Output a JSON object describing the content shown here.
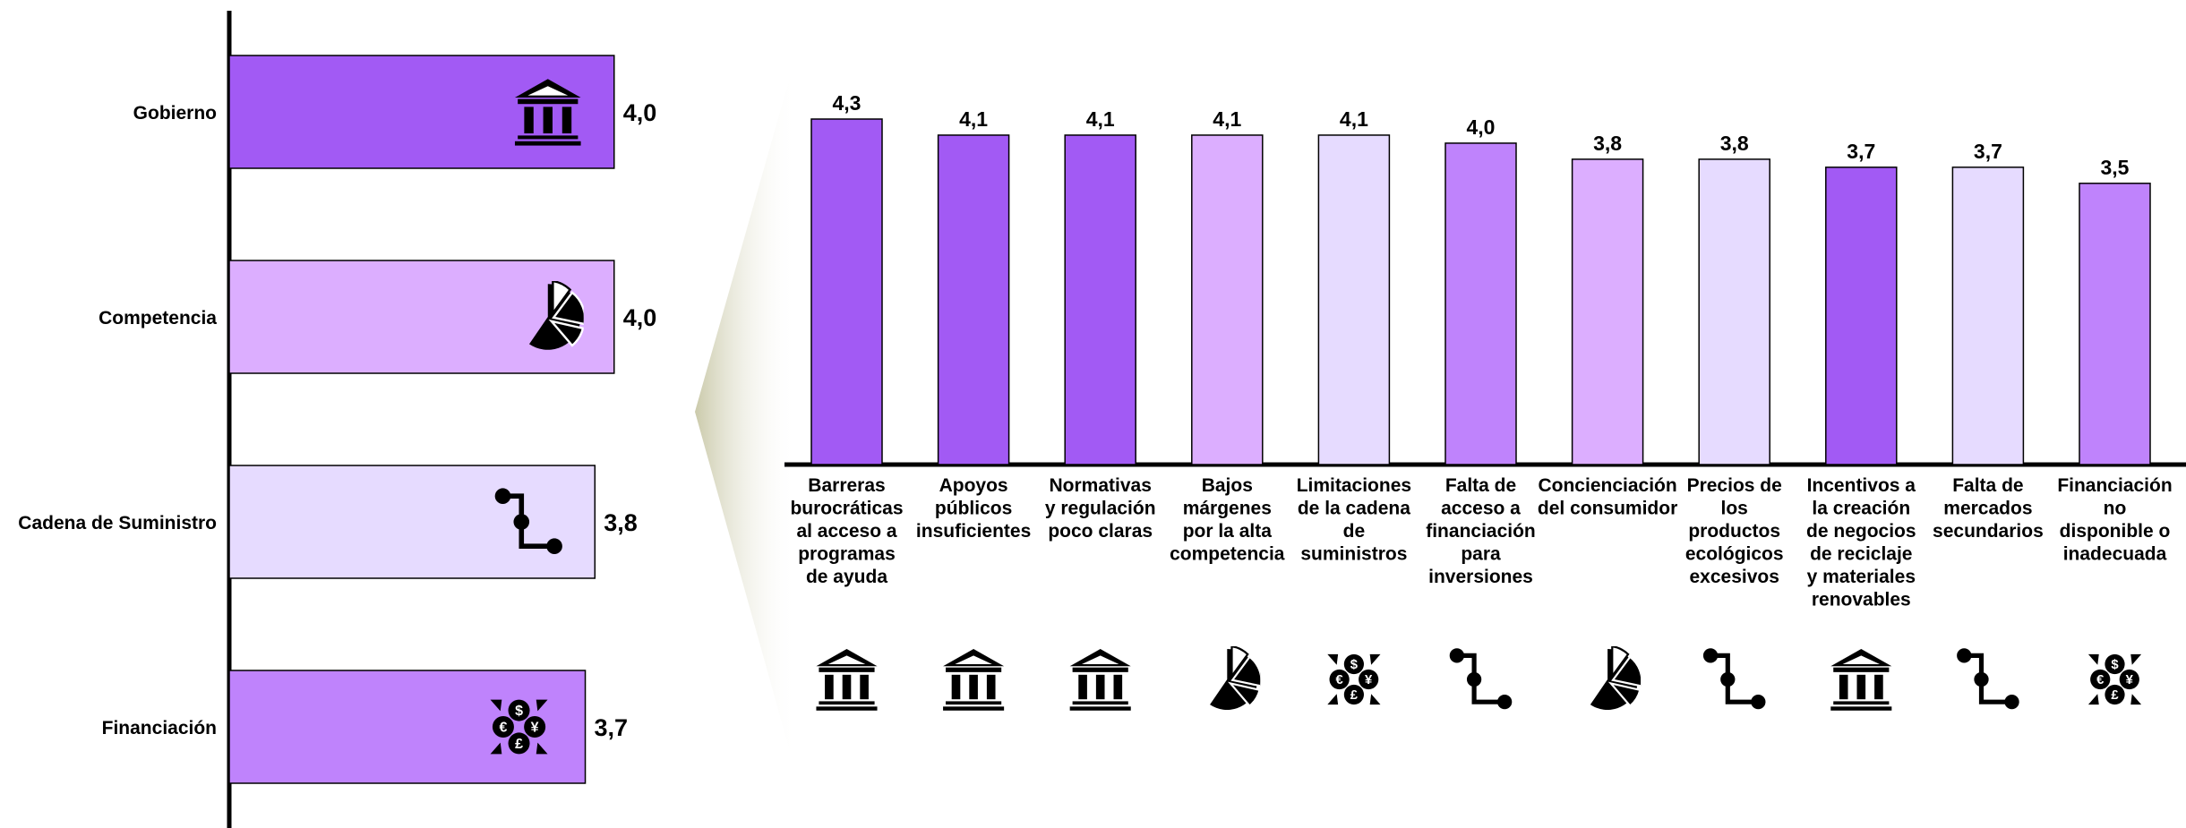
{
  "colors": {
    "dark": "#a25af4",
    "medium": "#bf83fc",
    "light": "#dcaeff",
    "pale": "#e6dbff",
    "axis": "#000000",
    "funnel": "#c8c7a6"
  },
  "chart_data": [
    {
      "type": "bar",
      "orientation": "horizontal",
      "title": "",
      "xlabel": "",
      "ylabel": "",
      "categories": [
        "Gobierno",
        "Competencia",
        "Cadena de Suministro",
        "Financiación"
      ],
      "values": [
        4.0,
        4.0,
        3.8,
        3.7
      ],
      "value_labels": [
        "4,0",
        "4,0",
        "3,8",
        "3,7"
      ],
      "bar_colors": [
        "#a25af4",
        "#dcaeff",
        "#e6dbff",
        "#bf83fc"
      ],
      "icons": [
        "government-building-icon",
        "pie-chart-icon",
        "supply-chain-icon",
        "currency-exchange-icon"
      ],
      "xlim": [
        0,
        4.3
      ],
      "grid": false,
      "legend": "none"
    },
    {
      "type": "bar",
      "orientation": "vertical",
      "title": "",
      "xlabel": "",
      "ylabel": "",
      "categories": [
        "Barreras burocráticas al acceso a programas de ayuda",
        "Apoyos públicos insuficientes",
        "Normativas y regulación poco claras",
        "Bajos márgenes por la alta competencia",
        "Limitaciones de la cadena de suministros",
        "Falta de acceso a financiación para inversiones",
        "Concienciación del consumidor",
        "Precios de los productos ecológicos excesivos",
        "Incentivos a la creación de negocios de reciclaje y materiales renovables",
        "Falta de mercados secundarios",
        "Financiación no disponible o inadecuada"
      ],
      "category_lines": [
        [
          "Barreras",
          "burocráticas",
          "al acceso a",
          "programas",
          "de ayuda"
        ],
        [
          "Apoyos",
          "públicos",
          "insuficientes"
        ],
        [
          "Normativas",
          "y regulación",
          "poco claras"
        ],
        [
          "Bajos",
          "márgenes",
          "por la alta",
          "competencia"
        ],
        [
          "Limitaciones",
          "de la cadena",
          "de",
          "suministros"
        ],
        [
          "Falta de",
          "acceso a",
          "financiación",
          "para",
          "inversiones"
        ],
        [
          "Concienciación",
          "del consumidor"
        ],
        [
          "Precios de",
          "los",
          "productos",
          "ecológicos",
          "excesivos"
        ],
        [
          "Incentivos a",
          "la creación",
          "de negocios",
          "de reciclaje",
          "y materiales",
          "renovables"
        ],
        [
          "Falta de",
          "mercados",
          "secundarios"
        ],
        [
          "Financiación",
          "no",
          "disponible o",
          "inadecuada"
        ]
      ],
      "values": [
        4.3,
        4.1,
        4.1,
        4.1,
        4.1,
        4.0,
        3.8,
        3.8,
        3.7,
        3.7,
        3.5
      ],
      "value_labels": [
        "4,3",
        "4,1",
        "4,1",
        "4,1",
        "4,1",
        "4,0",
        "3,8",
        "3,8",
        "3,7",
        "3,7",
        "3,5"
      ],
      "bar_colors": [
        "#a25af4",
        "#a25af4",
        "#a25af4",
        "#dcaeff",
        "#e6dbff",
        "#bf83fc",
        "#dcaeff",
        "#e6dbff",
        "#a25af4",
        "#e6dbff",
        "#bf83fc"
      ],
      "icons": [
        "government-building-icon",
        "government-building-icon",
        "government-building-icon",
        "pie-chart-icon",
        "currency-exchange-icon",
        "supply-chain-icon",
        "pie-chart-icon",
        "supply-chain-icon",
        "government-building-icon",
        "supply-chain-icon",
        "currency-exchange-icon"
      ],
      "ylim": [
        0,
        4.3
      ],
      "grid": false,
      "legend": "none"
    }
  ]
}
